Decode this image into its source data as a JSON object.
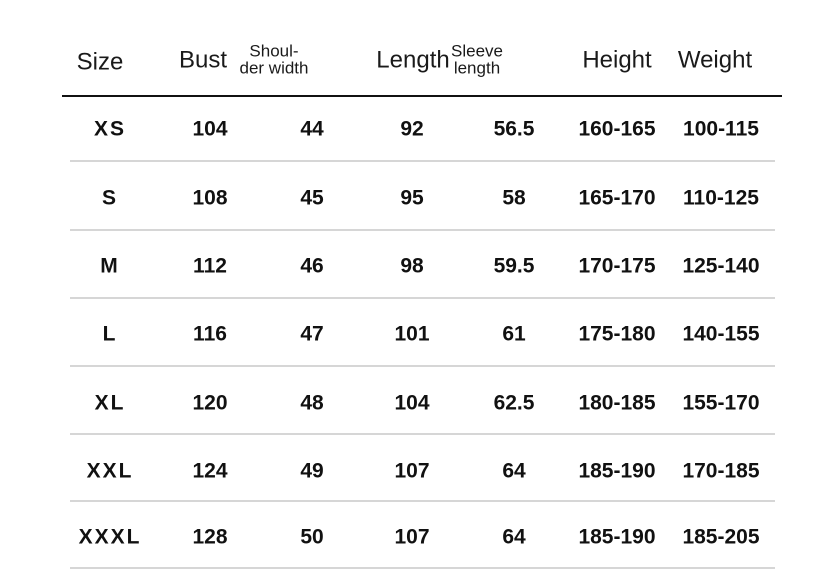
{
  "table": {
    "header": [
      "Size",
      "Bust",
      [
        "Shoul-",
        "der width"
      ],
      "Length",
      [
        "Sleeve",
        "length"
      ],
      "Height",
      "Weight"
    ],
    "rows": [
      [
        "XS",
        "104",
        "44",
        "92",
        "56.5",
        "160-165",
        "100-115"
      ],
      [
        "S",
        "108",
        "45",
        "95",
        "58",
        "165-170",
        "110-125"
      ],
      [
        "M",
        "112",
        "46",
        "98",
        "59.5",
        "170-175",
        "125-140"
      ],
      [
        "L",
        "116",
        "47",
        "101",
        "61",
        "175-180",
        "140-155"
      ],
      [
        "XL",
        "120",
        "48",
        "104",
        "62.5",
        "180-185",
        "155-170"
      ],
      [
        "XXL",
        "124",
        "49",
        "107",
        "64",
        "185-190",
        "170-185"
      ],
      [
        "XXXL",
        "128",
        "50",
        "107",
        "64",
        "185-190",
        "185-205"
      ]
    ]
  }
}
